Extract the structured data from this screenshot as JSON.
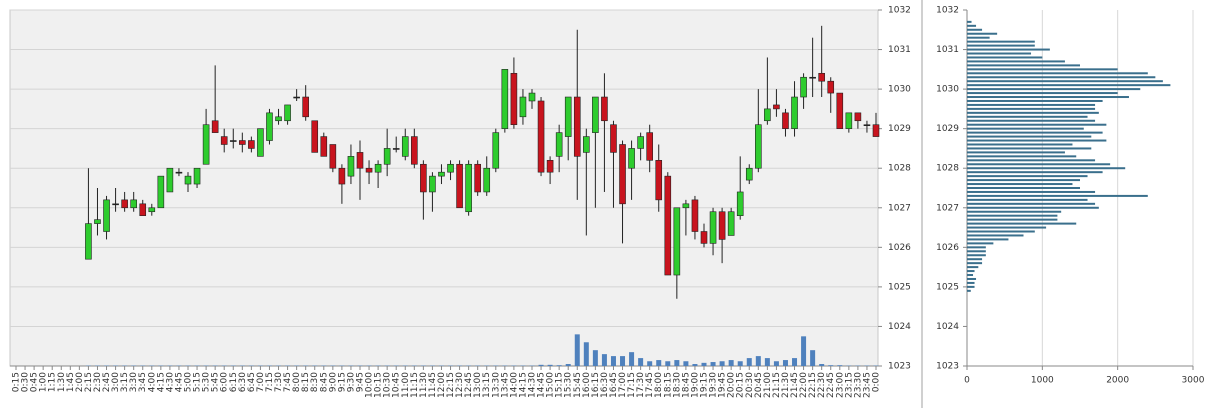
{
  "chart_data": [
    {
      "type": "candlestick",
      "categories": [
        "0:15",
        "0:30",
        "0:45",
        "1:00",
        "1:15",
        "1:30",
        "1:45",
        "2:00",
        "2:15",
        "2:30",
        "2:45",
        "3:00",
        "3:15",
        "3:30",
        "3:45",
        "4:00",
        "4:15",
        "4:30",
        "4:45",
        "5:00",
        "5:15",
        "5:30",
        "5:45",
        "6:00",
        "6:15",
        "6:30",
        "6:45",
        "7:00",
        "7:15",
        "7:30",
        "7:45",
        "8:00",
        "8:15",
        "8:30",
        "8:45",
        "9:00",
        "9:15",
        "9:30",
        "9:45",
        "10:00",
        "10:15",
        "10:30",
        "10:45",
        "11:00",
        "11:15",
        "11:30",
        "11:45",
        "12:00",
        "12:15",
        "12:30",
        "12:45",
        "13:00",
        "13:15",
        "13:30",
        "13:45",
        "14:00",
        "14:15",
        "14:30",
        "14:45",
        "15:00",
        "15:15",
        "15:30",
        "15:45",
        "16:00",
        "16:15",
        "16:30",
        "16:45",
        "17:00",
        "17:15",
        "17:30",
        "17:45",
        "18:00",
        "18:15",
        "18:30",
        "18:45",
        "19:00",
        "19:15",
        "19:30",
        "19:45",
        "20:00",
        "20:15",
        "20:30",
        "20:45",
        "21:00",
        "21:15",
        "21:30",
        "21:45",
        "22:00",
        "22:15",
        "22:30",
        "22:45",
        "23:00",
        "23:15",
        "23:30",
        "23:45",
        "0:00"
      ],
      "open": [
        null,
        null,
        null,
        null,
        null,
        null,
        null,
        null,
        1025.7,
        1026.6,
        1026.4,
        1027.1,
        1027.2,
        1027.0,
        1027.1,
        1026.9,
        1027.0,
        1027.4,
        1027.9,
        1027.6,
        1027.6,
        1028.1,
        1029.2,
        1028.8,
        1028.7,
        1028.7,
        1028.7,
        1028.3,
        1028.7,
        1029.2,
        1029.2,
        1029.8,
        1029.8,
        1029.2,
        1028.8,
        1028.6,
        1028.0,
        1027.8,
        1028.4,
        1028.0,
        1027.9,
        1028.1,
        1028.5,
        1028.3,
        1028.8,
        1028.1,
        1027.4,
        1027.8,
        1027.9,
        1028.1,
        1026.9,
        1028.1,
        1027.4,
        1028.0,
        1029.0,
        1030.4,
        1029.3,
        1029.7,
        1029.7,
        1028.2,
        1028.3,
        1028.8,
        1029.8,
        1028.4,
        1028.9,
        1029.8,
        1029.1,
        1028.6,
        1028.0,
        1028.5,
        1028.9,
        1028.2,
        1027.8,
        1025.3,
        1027.0,
        1027.2,
        1026.4,
        1026.1,
        1026.9,
        1026.3,
        1026.8,
        1027.7,
        1028.0,
        1029.2,
        1029.6,
        1029.4,
        1029.0,
        1029.8,
        1030.3,
        1030.4,
        1030.2,
        1029.9,
        1029.0,
        1029.4,
        1029.1,
        1029.1
      ],
      "high": [
        null,
        null,
        null,
        null,
        null,
        null,
        null,
        null,
        1028.0,
        1027.5,
        1027.3,
        1027.5,
        1027.4,
        1027.4,
        1027.2,
        1027.1,
        1027.8,
        1028.0,
        1028.0,
        1027.9,
        1028.0,
        1029.5,
        1030.6,
        1029.0,
        1029.0,
        1028.9,
        1028.8,
        1029.0,
        1029.5,
        1029.5,
        1029.6,
        1030.0,
        1030.1,
        1029.2,
        1028.9,
        1028.6,
        1028.1,
        1028.6,
        1028.7,
        1028.2,
        1028.2,
        1029.0,
        1028.8,
        1029.0,
        1029.0,
        1028.2,
        1027.9,
        1028.1,
        1028.2,
        1028.2,
        1028.2,
        1028.2,
        1028.3,
        1029.0,
        1030.5,
        1030.8,
        1030.0,
        1030.0,
        1029.8,
        1028.3,
        1029.1,
        1029.8,
        1031.5,
        1029.0,
        1029.8,
        1030.4,
        1029.2,
        1028.7,
        1028.7,
        1028.9,
        1029.1,
        1028.6,
        1027.9,
        1027.0,
        1027.2,
        1027.3,
        1026.6,
        1027.0,
        1027.0,
        1027.0,
        1028.3,
        1028.1,
        1030.0,
        1030.8,
        1030.0,
        1029.5,
        1030.2,
        1030.4,
        1031.3,
        1031.6,
        1030.3,
        1029.9,
        1029.4,
        1029.4,
        1029.2,
        1029.4
      ],
      "low": [
        null,
        null,
        null,
        null,
        null,
        null,
        null,
        null,
        1025.7,
        1026.3,
        1026.2,
        1026.9,
        1026.9,
        1026.9,
        1026.8,
        1026.8,
        1027.0,
        1027.4,
        1027.8,
        1027.4,
        1027.5,
        1028.1,
        1028.9,
        1028.4,
        1028.5,
        1028.4,
        1028.4,
        1028.3,
        1028.6,
        1029.1,
        1029.1,
        1029.7,
        1029.2,
        1028.4,
        1028.3,
        1027.9,
        1027.1,
        1027.6,
        1027.2,
        1027.6,
        1027.5,
        1027.8,
        1028.4,
        1028.2,
        1028.0,
        1026.7,
        1026.9,
        1027.6,
        1027.7,
        1027.0,
        1026.8,
        1027.3,
        1027.3,
        1027.9,
        1028.9,
        1029.0,
        1029.1,
        1029.5,
        1027.8,
        1027.6,
        1027.9,
        1028.2,
        1027.2,
        1026.3,
        1027.0,
        1027.4,
        1027.0,
        1026.1,
        1027.2,
        1028.2,
        1027.9,
        1026.9,
        1025.3,
        1024.7,
        1026.3,
        1026.2,
        1026.0,
        1025.8,
        1025.6,
        1026.3,
        1026.7,
        1027.6,
        1027.9,
        1029.1,
        1029.3,
        1028.8,
        1028.8,
        1029.5,
        1029.8,
        1029.8,
        1029.4,
        1029.0,
        1028.9,
        1029.0,
        1028.9,
        1028.8
      ],
      "close": [
        null,
        null,
        null,
        null,
        null,
        null,
        null,
        null,
        1026.6,
        1026.7,
        1027.2,
        1027.1,
        1027.0,
        1027.2,
        1026.8,
        1027.0,
        1027.8,
        1028.0,
        1027.9,
        1027.8,
        1028.0,
        1029.1,
        1028.9,
        1028.6,
        1028.7,
        1028.6,
        1028.5,
        1029.0,
        1029.4,
        1029.3,
        1029.6,
        1029.8,
        1029.3,
        1028.4,
        1028.3,
        1028.0,
        1027.6,
        1028.3,
        1028.0,
        1027.9,
        1028.1,
        1028.5,
        1028.5,
        1028.8,
        1028.1,
        1027.4,
        1027.8,
        1027.9,
        1028.1,
        1027.0,
        1028.1,
        1027.4,
        1028.0,
        1028.9,
        1030.5,
        1029.1,
        1029.8,
        1029.9,
        1027.9,
        1027.9,
        1028.9,
        1029.8,
        1028.3,
        1028.8,
        1029.8,
        1029.2,
        1028.4,
        1027.1,
        1028.5,
        1028.8,
        1028.2,
        1027.2,
        1025.3,
        1027.0,
        1027.1,
        1026.4,
        1026.1,
        1026.9,
        1026.2,
        1026.9,
        1027.4,
        1028.0,
        1029.1,
        1029.5,
        1029.5,
        1029.0,
        1029.8,
        1030.3,
        1030.3,
        1030.2,
        1029.9,
        1029.0,
        1029.4,
        1029.2,
        1029.1,
        1028.8
      ],
      "volume": [
        null,
        null,
        null,
        null,
        null,
        null,
        null,
        null,
        0.01,
        0.01,
        0.01,
        0.01,
        0.01,
        0.01,
        0.01,
        0.01,
        0.01,
        0.01,
        0.01,
        0.01,
        0.01,
        0.01,
        0.01,
        0.01,
        0.01,
        0.01,
        0.01,
        0.01,
        0.01,
        0.01,
        0.01,
        0.01,
        0.01,
        0.01,
        0.01,
        0.01,
        0.01,
        0.01,
        0.01,
        0.01,
        0.01,
        0.01,
        0.01,
        0.01,
        0.01,
        0.01,
        0.01,
        0.01,
        0.01,
        0.01,
        0.01,
        0.01,
        0.01,
        0.01,
        0.01,
        0.01,
        0.01,
        0.01,
        0.03,
        0.03,
        0.02,
        0.05,
        0.8,
        0.6,
        0.4,
        0.3,
        0.25,
        0.25,
        0.35,
        0.2,
        0.12,
        0.15,
        0.12,
        0.15,
        0.12,
        0.05,
        0.08,
        0.1,
        0.12,
        0.15,
        0.12,
        0.2,
        0.25,
        0.2,
        0.12,
        0.15,
        0.2,
        0.75,
        0.4,
        0.05,
        0.02,
        0.02,
        0.01,
        0.01,
        0.01,
        0.01
      ],
      "ylim": [
        1023,
        1032
      ],
      "yticks": [
        1023,
        1024,
        1025,
        1026,
        1027,
        1028,
        1029,
        1030,
        1031,
        1032
      ],
      "grid": true,
      "up_color": "#2ecc2e",
      "down_color": "#c8141e",
      "volume_color": "#4f81bd"
    },
    {
      "type": "profile",
      "levels": [
        1031.7,
        1031.6,
        1031.5,
        1031.4,
        1031.3,
        1031.2,
        1031.1,
        1031.0,
        1030.9,
        1030.8,
        1030.7,
        1030.6,
        1030.5,
        1030.4,
        1030.3,
        1030.2,
        1030.1,
        1030.0,
        1029.9,
        1029.8,
        1029.7,
        1029.6,
        1029.5,
        1029.4,
        1029.3,
        1029.2,
        1029.1,
        1029.0,
        1028.9,
        1028.8,
        1028.7,
        1028.6,
        1028.5,
        1028.4,
        1028.3,
        1028.2,
        1028.1,
        1028.0,
        1027.9,
        1027.8,
        1027.7,
        1027.6,
        1027.5,
        1027.4,
        1027.3,
        1027.2,
        1027.1,
        1027.0,
        1026.9,
        1026.8,
        1026.7,
        1026.6,
        1026.5,
        1026.4,
        1026.3,
        1026.2,
        1026.1,
        1026.0,
        1025.9,
        1025.8,
        1025.7,
        1025.6,
        1025.5,
        1025.4,
        1025.3,
        1025.2,
        1025.1,
        1025.0,
        1024.9
      ],
      "values": [
        60,
        120,
        200,
        400,
        300,
        900,
        900,
        1100,
        850,
        1000,
        1300,
        1500,
        2000,
        2400,
        2500,
        2600,
        2700,
        2300,
        2000,
        2150,
        1800,
        1700,
        1700,
        1750,
        1600,
        1700,
        1850,
        1550,
        1800,
        1650,
        1850,
        1400,
        1650,
        1300,
        1450,
        1700,
        1900,
        2100,
        1800,
        1600,
        1500,
        1400,
        1500,
        1700,
        2400,
        1600,
        1700,
        1750,
        1250,
        1200,
        1200,
        1450,
        1050,
        900,
        750,
        550,
        350,
        250,
        250,
        250,
        200,
        200,
        150,
        100,
        80,
        120,
        100,
        100,
        50
      ],
      "xlim": [
        0,
        3000
      ],
      "xticks": [
        0,
        1000,
        2000,
        3000
      ],
      "ylim": [
        1023,
        1032
      ],
      "yticks": [
        1023,
        1024,
        1025,
        1026,
        1027,
        1028,
        1029,
        1030,
        1031,
        1032
      ],
      "grid": true,
      "color": "#3a6f8c"
    }
  ]
}
